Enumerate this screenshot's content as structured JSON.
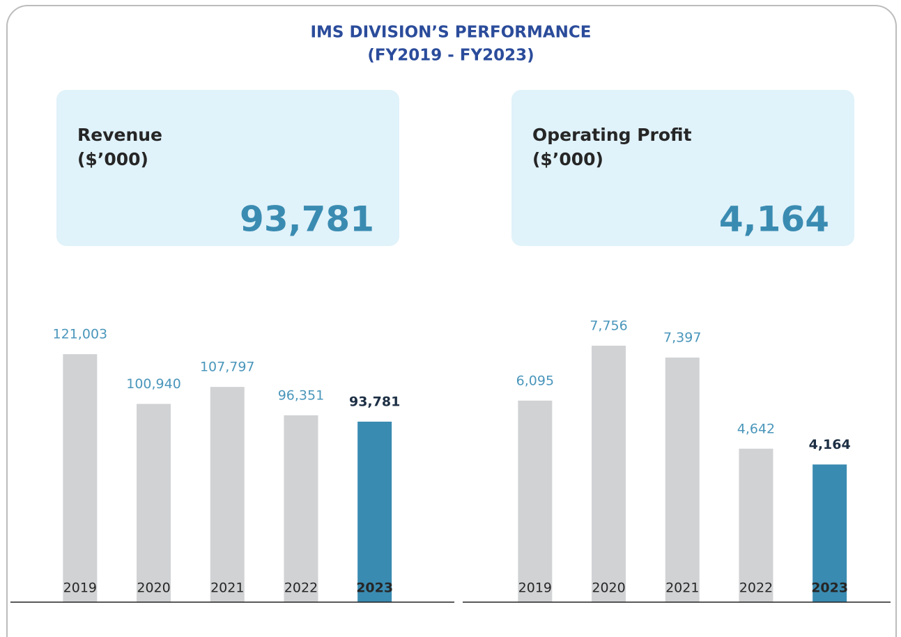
{
  "title": [
    "IMS DIVISION’S PERFORMANCE",
    "(FY2019 - FY2023)"
  ],
  "chart_data": [
    {
      "type": "bar",
      "title": "Revenue",
      "subtitle": "($’000)",
      "highlight": "93,781",
      "categories": [
        "2019",
        "2020",
        "2021",
        "2022",
        "2023"
      ],
      "values": [
        121003,
        100940,
        107797,
        96351,
        93781
      ],
      "value_labels": [
        "121,003",
        "100,940",
        "107,797",
        "96,351",
        "93,781"
      ],
      "colors": [
        "#d1d2d4",
        "#d1d2d4",
        "#d1d2d4",
        "#d1d2d4",
        "#3a8bb1"
      ],
      "highlight_index": 4,
      "ylim": [
        21000,
        141000
      ]
    },
    {
      "type": "bar",
      "title": "Operating Profit",
      "subtitle": "($’000)",
      "highlight": "4,164",
      "categories": [
        "2019",
        "2020",
        "2021",
        "2022",
        "2023"
      ],
      "values": [
        6095,
        7756,
        7397,
        4642,
        4164
      ],
      "value_labels": [
        "6,095",
        "7,756",
        "7,397",
        "4,642",
        "4,164"
      ],
      "colors": [
        "#d1d2d4",
        "#d1d2d4",
        "#d1d2d4",
        "#d1d2d4",
        "#3a8bb1"
      ],
      "highlight_index": 4,
      "ylim": [
        0,
        9000
      ]
    }
  ]
}
